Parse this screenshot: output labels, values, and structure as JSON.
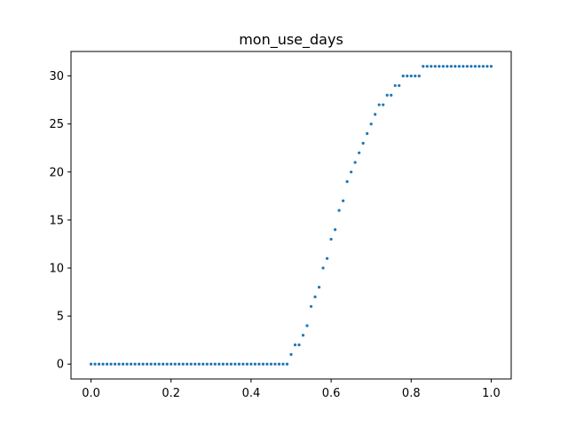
{
  "chart_data": {
    "type": "scatter",
    "title": "mon_use_days",
    "xlabel": "",
    "ylabel": "",
    "xlim": [
      -0.05,
      1.05
    ],
    "ylim": [
      -1.55,
      32.55
    ],
    "xticks": [
      0.0,
      0.2,
      0.4,
      0.6,
      0.8,
      1.0
    ],
    "xtick_labels": [
      "0.0",
      "0.2",
      "0.4",
      "0.6",
      "0.8",
      "1.0"
    ],
    "yticks": [
      0,
      5,
      10,
      15,
      20,
      25,
      30
    ],
    "ytick_labels": [
      "0",
      "5",
      "10",
      "15",
      "20",
      "25",
      "30"
    ],
    "grid": false,
    "marker_color": "#1f77b4",
    "series": [
      {
        "x": [
          0.0,
          0.01,
          0.02,
          0.03,
          0.04,
          0.05,
          0.06,
          0.07,
          0.08,
          0.09,
          0.1,
          0.11,
          0.12,
          0.13,
          0.14,
          0.15,
          0.16,
          0.17,
          0.18,
          0.19,
          0.2,
          0.21,
          0.22,
          0.23,
          0.24,
          0.25,
          0.26,
          0.27,
          0.28,
          0.29,
          0.3,
          0.31,
          0.32,
          0.33,
          0.34,
          0.35,
          0.36,
          0.37,
          0.38,
          0.39,
          0.4,
          0.41,
          0.42,
          0.43,
          0.44,
          0.45,
          0.46,
          0.47,
          0.48,
          0.49,
          0.5,
          0.51,
          0.52,
          0.53,
          0.54,
          0.55,
          0.56,
          0.57,
          0.58,
          0.59,
          0.6,
          0.61,
          0.62,
          0.63,
          0.64,
          0.65,
          0.66,
          0.67,
          0.68,
          0.69,
          0.7,
          0.71,
          0.72,
          0.73,
          0.74,
          0.75,
          0.76,
          0.77,
          0.78,
          0.79,
          0.8,
          0.81,
          0.82,
          0.83,
          0.84,
          0.85,
          0.86,
          0.87,
          0.88,
          0.89,
          0.9,
          0.91,
          0.92,
          0.93,
          0.94,
          0.95,
          0.96,
          0.97,
          0.98,
          0.99,
          1.0
        ],
        "y": [
          0,
          0,
          0,
          0,
          0,
          0,
          0,
          0,
          0,
          0,
          0,
          0,
          0,
          0,
          0,
          0,
          0,
          0,
          0,
          0,
          0,
          0,
          0,
          0,
          0,
          0,
          0,
          0,
          0,
          0,
          0,
          0,
          0,
          0,
          0,
          0,
          0,
          0,
          0,
          0,
          0,
          0,
          0,
          0,
          0,
          0,
          0,
          0,
          0,
          0,
          1,
          2,
          2,
          3,
          4,
          6,
          7,
          8,
          10,
          11,
          13,
          14,
          16,
          17,
          19,
          20,
          21,
          22,
          23,
          24,
          25,
          26,
          27,
          27,
          28,
          28,
          29,
          29,
          30,
          30,
          30,
          30,
          30,
          31,
          31,
          31,
          31,
          31,
          31,
          31,
          31,
          31,
          31,
          31,
          31,
          31,
          31,
          31,
          31,
          31,
          31
        ]
      }
    ]
  }
}
